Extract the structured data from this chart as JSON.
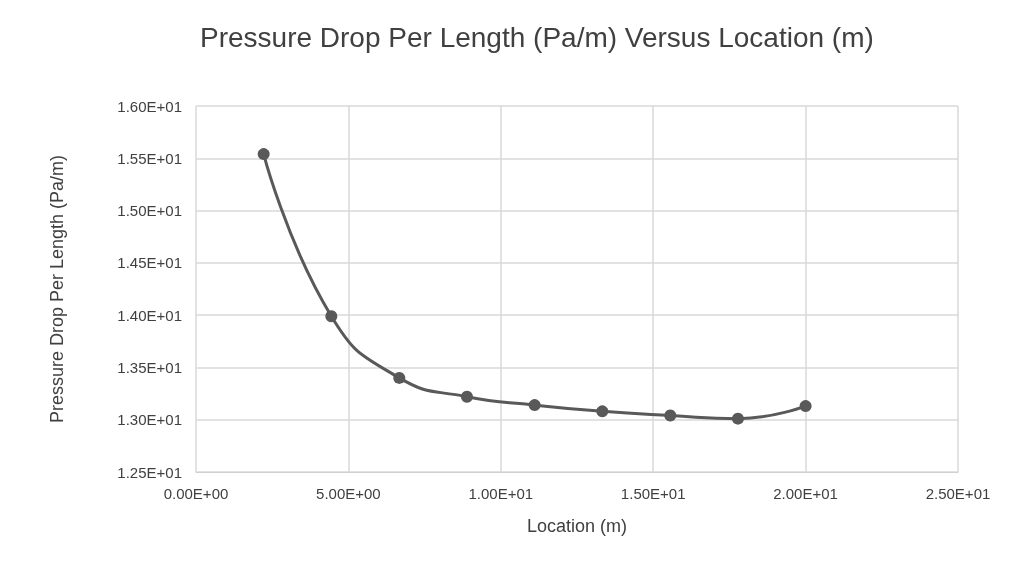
{
  "chart_data": {
    "type": "line",
    "title": "Pressure Drop Per Length (Pa/m) Versus Location (m)",
    "xlabel": "Location (m)",
    "ylabel": "Pressure Drop Per Length (Pa/m)",
    "x": [
      2.22,
      4.44,
      6.67,
      8.89,
      11.11,
      13.33,
      15.56,
      17.78,
      20.0
    ],
    "series": [
      {
        "color": "#595959",
        "values": [
          15.54,
          13.99,
          13.4,
          13.22,
          13.14,
          13.08,
          13.04,
          13.01,
          13.13
        ]
      }
    ],
    "xlim": [
      0,
      25
    ],
    "xticks": [
      {
        "value": 0,
        "label": "0.00E+00"
      },
      {
        "value": 5,
        "label": "5.00E+00"
      },
      {
        "value": 10,
        "label": "1.00E+01"
      },
      {
        "value": 15,
        "label": "1.50E+01"
      },
      {
        "value": 20,
        "label": "2.00E+01"
      },
      {
        "value": 25,
        "label": "2.50E+01"
      }
    ],
    "ylim": [
      12.5,
      16
    ],
    "yticks": [
      {
        "value": 12.5,
        "label": "1.25E+01"
      },
      {
        "value": 13,
        "label": "1.30E+01"
      },
      {
        "value": 13.5,
        "label": "1.35E+01"
      },
      {
        "value": 14,
        "label": "1.40E+01"
      },
      {
        "value": 14.5,
        "label": "1.45E+01"
      },
      {
        "value": 15,
        "label": "1.50E+01"
      },
      {
        "value": 15.5,
        "label": "1.55E+01"
      },
      {
        "value": 16,
        "label": "1.60E+01"
      }
    ],
    "grid": true,
    "marker": "circle",
    "line_style": "solid"
  }
}
